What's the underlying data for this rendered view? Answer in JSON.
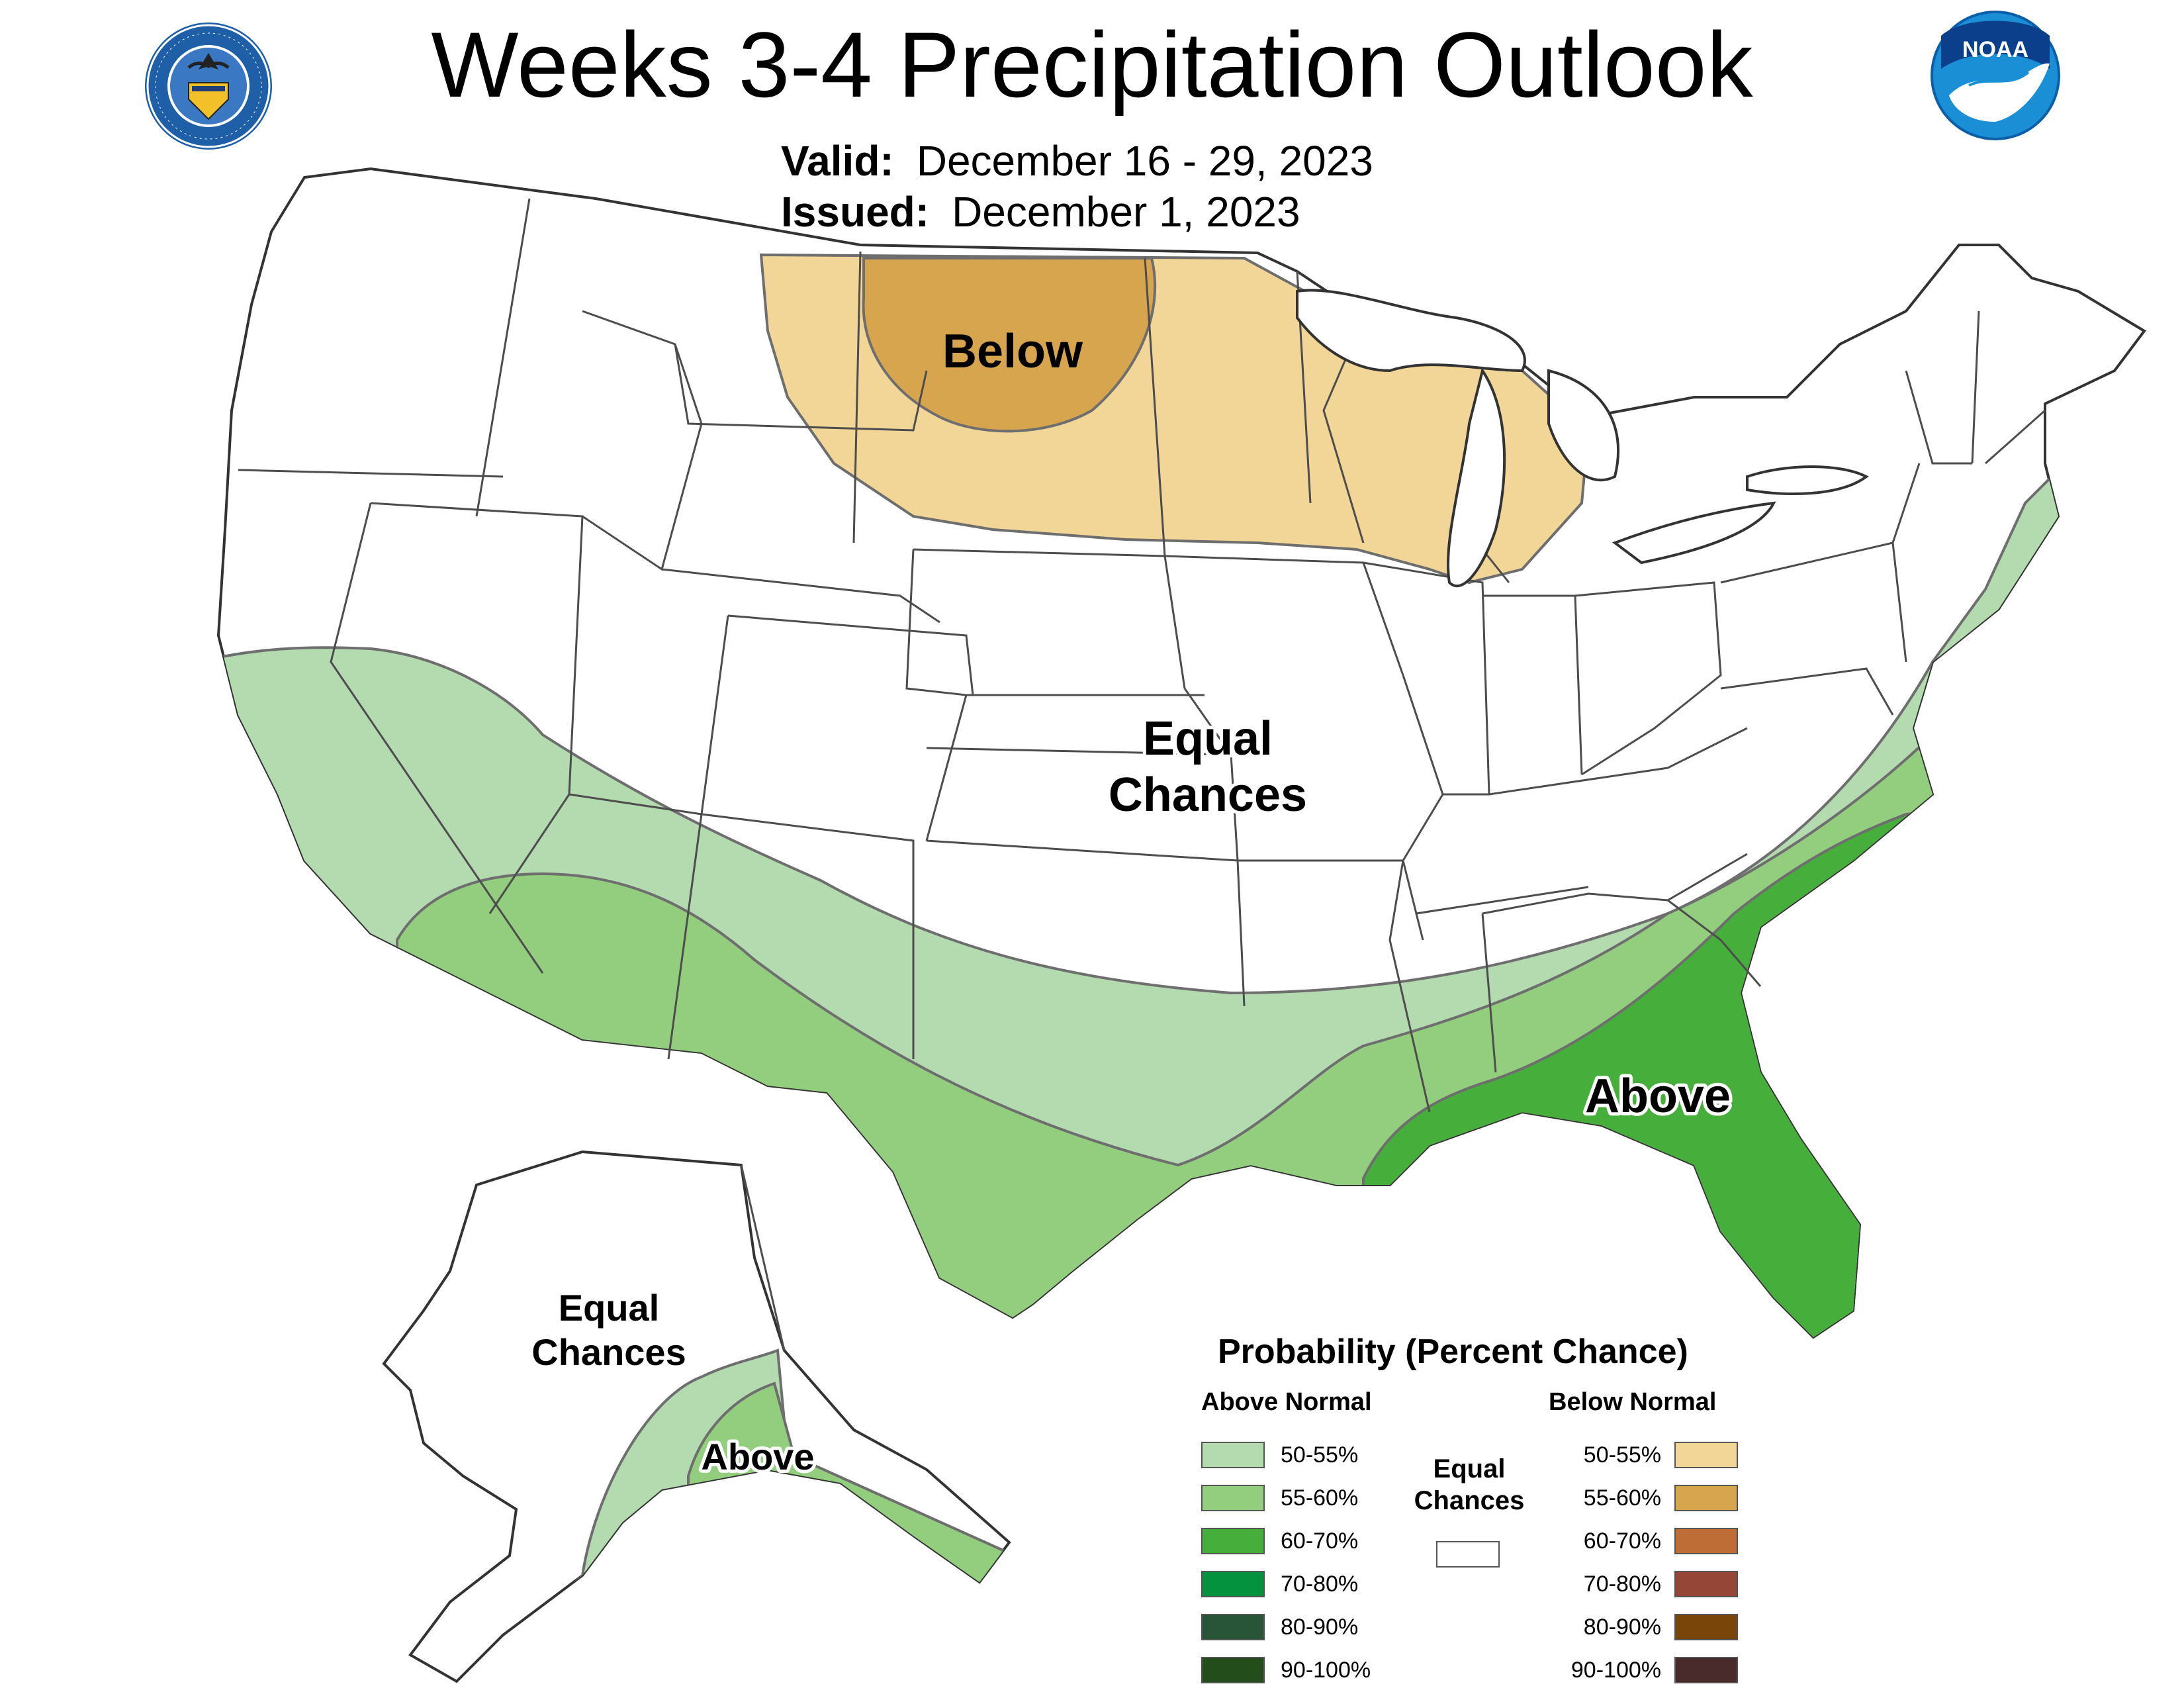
{
  "header": {
    "title": "Weeks 3-4 Precipitation Outlook",
    "valid_label": "Valid:",
    "valid_value": "December 16 - 29, 2023",
    "issued_label": "Issued:",
    "issued_value": "December 1, 2023"
  },
  "logos": {
    "left": {
      "icon": "department-of-commerce-seal-icon",
      "ring_text": "DEPARTMENT OF COMMERCE · UNITED STATES OF AMERICA"
    },
    "right": {
      "icon": "noaa-logo-icon",
      "text": "NOAA"
    }
  },
  "map_labels": {
    "below": "Below",
    "equal_line1": "Equal",
    "equal_line2": "Chances",
    "above": "Above",
    "alaska_equal_line1": "Equal",
    "alaska_equal_line2": "Chances",
    "alaska_above": "Above"
  },
  "legend": {
    "title": "Probability (Percent Chance)",
    "above_header": "Above Normal",
    "below_header": "Below Normal",
    "equal_line1": "Equal",
    "equal_line2": "Chances",
    "above_bins": [
      {
        "label": "50-55%",
        "color": "#b3dbaf"
      },
      {
        "label": "55-60%",
        "color": "#93ce7e"
      },
      {
        "label": "60-70%",
        "color": "#46ae3b"
      },
      {
        "label": "70-80%",
        "color": "#05923f"
      },
      {
        "label": "80-90%",
        "color": "#285438"
      },
      {
        "label": "90-100%",
        "color": "#234d1b"
      }
    ],
    "below_bins": [
      {
        "label": "50-55%",
        "color": "#f1d698"
      },
      {
        "label": "55-60%",
        "color": "#d8a54f"
      },
      {
        "label": "60-70%",
        "color": "#bd6d35"
      },
      {
        "label": "70-80%",
        "color": "#964636"
      },
      {
        "label": "80-90%",
        "color": "#7a4509"
      },
      {
        "label": "90-100%",
        "color": "#4a2b2b"
      }
    ],
    "equal_color": "#ffffff"
  },
  "colors": {
    "state_border": "#4d4d4d",
    "contour_line": "#6e6e6e",
    "coast_outline": "#333333"
  }
}
